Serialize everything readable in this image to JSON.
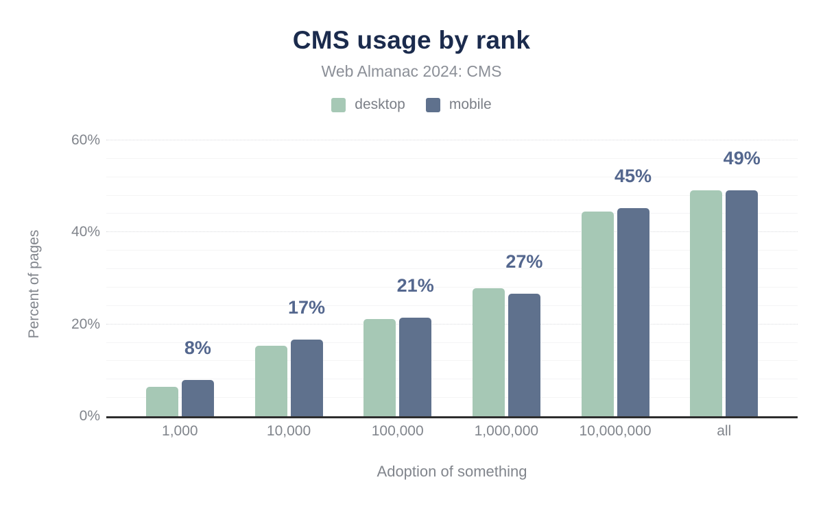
{
  "header": {
    "title": "CMS usage by rank",
    "subtitle": "Web Almanac 2024: CMS"
  },
  "chart_data": {
    "type": "bar",
    "title": "CMS usage by rank",
    "subtitle": "Web Almanac 2024: CMS",
    "xlabel": "Adoption of something",
    "ylabel": "Percent of pages",
    "categories": [
      "1,000",
      "10,000",
      "100,000",
      "1,000,000",
      "10,000,000",
      "all"
    ],
    "series": [
      {
        "name": "desktop",
        "color": "#a6c8b5",
        "values": [
          6.4,
          15.3,
          21.1,
          27.8,
          44.5,
          49.1
        ]
      },
      {
        "name": "mobile",
        "color": "#5f718d",
        "values": [
          7.9,
          16.7,
          21.5,
          26.7,
          45.2,
          49.1
        ]
      }
    ],
    "data_labels": [
      "8%",
      "17%",
      "21%",
      "27%",
      "45%",
      "49%"
    ],
    "label_series_index": 1,
    "ylim": [
      0,
      60
    ],
    "yticks": [
      0,
      20,
      40,
      60
    ],
    "ytick_labels": [
      "0%",
      "20%",
      "40%",
      "60%"
    ],
    "grid_step": 4,
    "grid": true,
    "legend_position": "top"
  },
  "colors": {
    "title": "#1b2b4d",
    "subtitle": "#8b8f97",
    "axis_text": "#81858c",
    "data_label": "#54678e",
    "axis_line": "#2d2d2d",
    "grid_minor": "#f4f4f5",
    "grid_major": "#d9dade",
    "desktop": "#a6c8b5",
    "mobile": "#5f718d",
    "background": "#ffffff"
  }
}
